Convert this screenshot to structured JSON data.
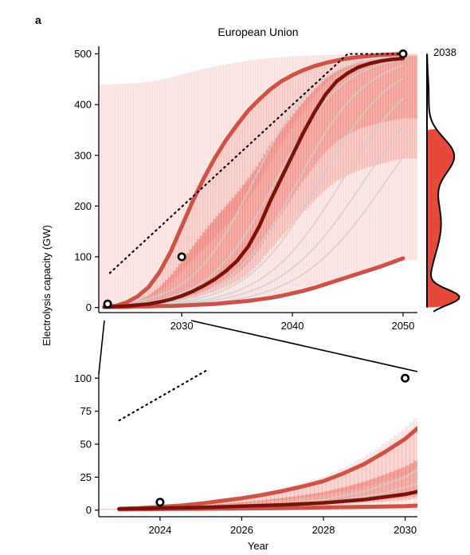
{
  "panel_letter": "a",
  "chart_data": [
    {
      "id": "top",
      "type": "line",
      "title": "European Union",
      "ylabel": "Electrolysis capacity (GW)",
      "xlim": [
        2022.5,
        2051.3
      ],
      "ylim": [
        -10,
        515
      ],
      "xticks": [
        2030,
        2040,
        2050
      ],
      "xtick_labels": [
        "2030",
        "2040",
        "2050"
      ],
      "yticks": [
        0,
        100,
        200,
        300,
        400,
        500
      ],
      "ytick_labels": [
        "0",
        "100",
        "200",
        "300",
        "400",
        "500"
      ],
      "band": {
        "fan_start": 2023.7,
        "min_end": 100,
        "max_time_ratio": 0.52
      },
      "series": [
        {
          "role": "upper",
          "x": [
            2023,
            2024,
            2025,
            2026,
            2027,
            2028,
            2029,
            2030,
            2031,
            2032,
            2033,
            2034,
            2035,
            2036,
            2037,
            2038,
            2039,
            2040,
            2041,
            2042,
            2043,
            2044,
            2045,
            2046,
            2047,
            2048,
            2049,
            2050
          ],
          "values": [
            1,
            3,
            10,
            22,
            40,
            70,
            110,
            160,
            210,
            255,
            295,
            330,
            360,
            388,
            410,
            430,
            446,
            458,
            468,
            476,
            482,
            487,
            491,
            494,
            496,
            498,
            499,
            500
          ]
        },
        {
          "role": "median",
          "x": [
            2023,
            2024,
            2025,
            2026,
            2027,
            2028,
            2029,
            2030,
            2031,
            2032,
            2033,
            2034,
            2035,
            2036,
            2037,
            2038,
            2039,
            2040,
            2041,
            2042,
            2043,
            2044,
            2045,
            2046,
            2047,
            2048,
            2049,
            2050
          ],
          "values": [
            1,
            2,
            3,
            5,
            7,
            11,
            16,
            23,
            32,
            43,
            56,
            72,
            92,
            120,
            160,
            210,
            255,
            300,
            345,
            385,
            420,
            446,
            462,
            474,
            481,
            486,
            489,
            491
          ]
        },
        {
          "role": "lower",
          "x": [
            2023,
            2024,
            2025,
            2026,
            2027,
            2028,
            2029,
            2030,
            2031,
            2032,
            2033,
            2034,
            2035,
            2036,
            2037,
            2038,
            2039,
            2040,
            2041,
            2042,
            2043,
            2044,
            2045,
            2046,
            2047,
            2048,
            2049,
            2050
          ],
          "values": [
            1,
            1,
            1,
            2,
            2,
            3,
            3,
            4,
            5,
            6,
            7,
            9,
            11,
            13,
            16,
            19,
            23,
            28,
            33,
            39,
            46,
            53,
            60,
            67,
            74,
            81,
            89,
            97
          ]
        }
      ],
      "sample_curves": [
        {
          "midpoint": 2036.5,
          "rate": 0.35,
          "cap": 500
        },
        {
          "midpoint": 2038.5,
          "rate": 0.33,
          "cap": 500
        },
        {
          "midpoint": 2040.5,
          "rate": 0.32,
          "cap": 500
        },
        {
          "midpoint": 2042.5,
          "rate": 0.3,
          "cap": 500
        },
        {
          "midpoint": 2044.5,
          "rate": 0.28,
          "cap": 500
        },
        {
          "midpoint": 2046.5,
          "rate": 0.26,
          "cap": 500
        },
        {
          "midpoint": 2048.5,
          "rate": 0.25,
          "cap": 500
        }
      ],
      "dotted_line": {
        "x": [
          2023.5,
          2045.0,
          2050.0
        ],
        "values": [
          68,
          500,
          500
        ]
      },
      "markers": [
        {
          "x": 2023.3,
          "value": 7
        },
        {
          "x": 2030.0,
          "value": 100
        },
        {
          "x": 2050.0,
          "value": 500
        }
      ],
      "density": {
        "label": "2038",
        "year": 2038,
        "shaded_ylim": [
          0,
          350
        ]
      },
      "colors": {
        "upper": "#cc4a3d",
        "median": "#7a1208",
        "lower": "#c94a3f",
        "band": "#e8483a",
        "sample": "#cfcfcf",
        "density": "#e8483a"
      }
    },
    {
      "id": "bottom",
      "type": "line",
      "title": "",
      "xlabel": "Year",
      "xlim": [
        2022.5,
        2030.3
      ],
      "ylim": [
        -5,
        105
      ],
      "xticks": [
        2024,
        2026,
        2028,
        2030
      ],
      "xtick_labels": [
        "2024",
        "2026",
        "2028",
        "2030"
      ],
      "yticks": [
        0,
        25,
        50,
        75,
        100
      ],
      "ytick_labels": [
        "0",
        "25",
        "50",
        "75",
        "100"
      ],
      "series": [
        {
          "role": "upper",
          "x": [
            2023.0,
            2023.5,
            2024.0,
            2024.5,
            2025.0,
            2025.5,
            2026.0,
            2026.5,
            2027.0,
            2027.5,
            2028.0,
            2028.5,
            2029.0,
            2029.5,
            2030.0,
            2030.3
          ],
          "values": [
            1,
            1.5,
            2.5,
            3.5,
            5,
            7,
            9,
            11.5,
            14.5,
            18,
            22,
            28,
            35,
            44,
            54,
            62
          ]
        },
        {
          "role": "median",
          "x": [
            2023.0,
            2024.0,
            2025.0,
            2026.0,
            2027.0,
            2028.0,
            2029.0,
            2030.0,
            2030.3
          ],
          "values": [
            1,
            1.5,
            2,
            3,
            4,
            5.5,
            8,
            12,
            14
          ]
        },
        {
          "role": "lower",
          "x": [
            2023.0,
            2024.0,
            2025.0,
            2026.0,
            2027.0,
            2028.0,
            2029.0,
            2030.0,
            2030.3
          ],
          "values": [
            0.5,
            0.8,
            1,
            1.2,
            1.5,
            2,
            2.5,
            3,
            3.5
          ]
        }
      ],
      "sample_curves": [
        {
          "points_x": [
            2026.0,
            2027.0,
            2028.0,
            2029.0,
            2030.0,
            2030.3
          ],
          "points_y": [
            3,
            5,
            8,
            14,
            25,
            31
          ]
        },
        {
          "points_x": [
            2026.5,
            2027.5,
            2028.5,
            2029.5,
            2030.3
          ],
          "points_y": [
            3,
            5,
            8,
            13,
            20
          ]
        }
      ],
      "dotted_line": {
        "x": [
          2023.0,
          2025.2
        ],
        "values": [
          68,
          107
        ]
      },
      "markers": [
        {
          "x": 2024.0,
          "value": 6
        },
        {
          "x": 2030.0,
          "value": 100
        }
      ],
      "colors": {
        "upper": "#cc4a3d",
        "median": "#7a1208",
        "lower": "#c94a3f",
        "band": "#e8483a",
        "sample": "#cfcfcf"
      }
    }
  ]
}
